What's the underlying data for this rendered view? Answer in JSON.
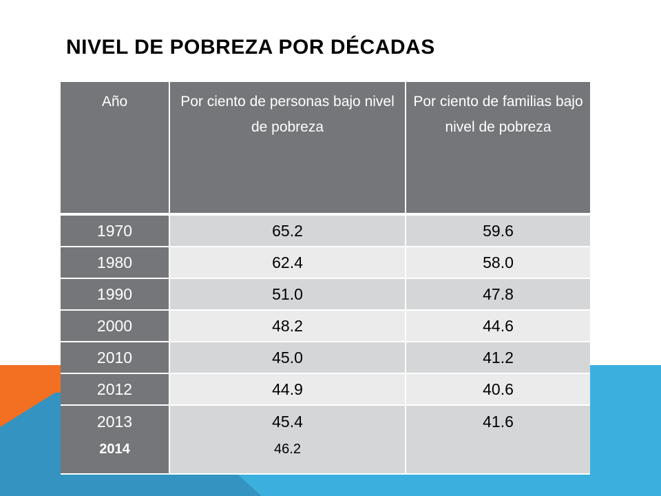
{
  "slide": {
    "title": "NIVEL DE POBREZA POR DÉCADAS",
    "colors": {
      "header_bg": "#757679",
      "row_odd": "#d5d6d8",
      "row_even": "#ebebec",
      "accent_orange": "#f36f21",
      "accent_blue": "#3bb0df",
      "accent_blue_dark": "#3493c0"
    }
  },
  "table": {
    "headers": [
      "Año",
      "Por ciento de personas bajo nivel de pobreza",
      "Por ciento de familias bajo nivel de pobreza"
    ],
    "rows": [
      {
        "year": "1970",
        "personas": "65.2",
        "familias": "59.6"
      },
      {
        "year": "1980",
        "personas": "62.4",
        "familias": "58.0"
      },
      {
        "year": "1990",
        "personas": "51.0",
        "familias": "47.8"
      },
      {
        "year": "2000",
        "personas": "48.2",
        "familias": "44.6"
      },
      {
        "year": "2010",
        "personas": "45.0",
        "familias": "41.2"
      },
      {
        "year": "2012",
        "personas": "44.9",
        "familias": "40.6"
      },
      {
        "year": "2013",
        "personas": "45.4",
        "familias": "41.6",
        "year2": "2014",
        "personas2": "46.2"
      }
    ]
  }
}
